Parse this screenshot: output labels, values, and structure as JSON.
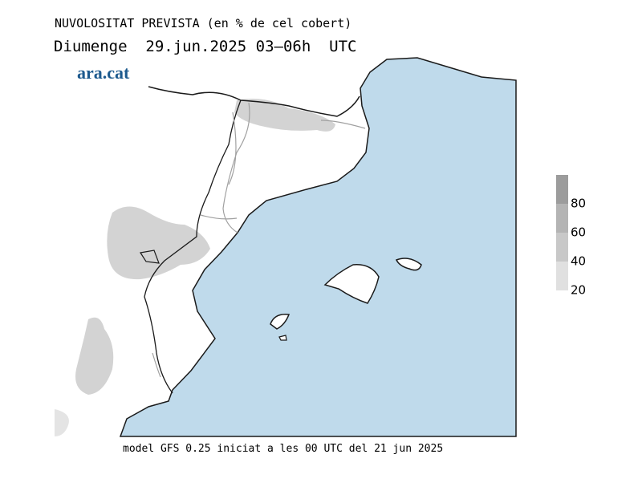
{
  "header": {
    "title": "NUVOLOSITAT PREVISTA (en % de cel cobert)",
    "subtitle": "Diumenge  29.jun.2025 03—06h  UTC",
    "logo": "ara.cat"
  },
  "footer": {
    "text": "model GFS 0.25 iniciat a les 00 UTC del 21 jun 2025"
  },
  "colorbar": {
    "range": [
      20,
      100
    ],
    "ticks": [
      20,
      40,
      60,
      80
    ],
    "colors": [
      "#e0e0e0",
      "#c8c8c8",
      "#b4b4b4",
      "#9c9c9c"
    ]
  }
}
